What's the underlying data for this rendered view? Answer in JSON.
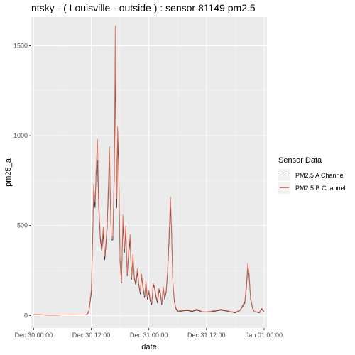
{
  "chart_data": {
    "type": "line",
    "title": "ntsky - ( Louisville - outside ) : sensor 81149 pm2.5",
    "xlabel": "date",
    "ylabel": "pm25_a",
    "x_ticks": [
      "Dec 30 00:00",
      "Dec 30 12:00",
      "Dec 31 00:00",
      "Dec 31 12:00",
      "Jan 01 00:00"
    ],
    "x_tick_hours": [
      0,
      12,
      24,
      36,
      48
    ],
    "xlim_hours": [
      -0.5,
      48.6
    ],
    "y_ticks": [
      0,
      500,
      1000,
      1500
    ],
    "ylim": [
      -70,
      1660
    ],
    "grid": true,
    "background": "#ebebeb",
    "legend_title": "Sensor Data",
    "legend_position": "right",
    "x_unit": "hours since Dec 30 00:00",
    "series": [
      {
        "name": "PM2.5 A Channel",
        "color": "#333333",
        "points": [
          [
            0,
            5
          ],
          [
            1,
            4
          ],
          [
            2,
            3
          ],
          [
            3,
            2
          ],
          [
            4,
            2
          ],
          [
            5,
            2
          ],
          [
            6,
            3
          ],
          [
            7,
            3
          ],
          [
            8,
            3
          ],
          [
            9,
            3
          ],
          [
            10,
            3
          ],
          [
            11,
            4
          ],
          [
            11.5,
            20
          ],
          [
            12,
            120
          ],
          [
            12.3,
            420
          ],
          [
            12.5,
            690
          ],
          [
            12.8,
            600
          ],
          [
            13,
            780
          ],
          [
            13.3,
            860
          ],
          [
            13.6,
            580
          ],
          [
            13.9,
            420
          ],
          [
            14.2,
            360
          ],
          [
            14.5,
            460
          ],
          [
            14.8,
            310
          ],
          [
            15,
            370
          ],
          [
            15.3,
            480
          ],
          [
            15.6,
            720
          ],
          [
            15.8,
            900
          ],
          [
            16,
            600
          ],
          [
            16.2,
            420
          ],
          [
            16.5,
            420
          ],
          [
            16.8,
            790
          ],
          [
            17,
            1420
          ],
          [
            17.1,
            1100
          ],
          [
            17.3,
            600
          ],
          [
            17.5,
            980
          ],
          [
            17.7,
            840
          ],
          [
            18,
            300
          ],
          [
            18.3,
            180
          ],
          [
            18.6,
            520
          ],
          [
            18.9,
            350
          ],
          [
            19.2,
            470
          ],
          [
            19.5,
            220
          ],
          [
            19.8,
            350
          ],
          [
            20.1,
            420
          ],
          [
            20.4,
            200
          ],
          [
            20.7,
            320
          ],
          [
            21,
            200
          ],
          [
            21.3,
            170
          ],
          [
            21.6,
            240
          ],
          [
            21.9,
            170
          ],
          [
            22.2,
            120
          ],
          [
            22.5,
            220
          ],
          [
            22.8,
            150
          ],
          [
            23.1,
            100
          ],
          [
            23.4,
            180
          ],
          [
            23.7,
            90
          ],
          [
            24,
            130
          ],
          [
            24.3,
            80
          ],
          [
            24.6,
            60
          ],
          [
            24.9,
            170
          ],
          [
            25.2,
            150
          ],
          [
            25.5,
            100
          ],
          [
            25.8,
            70
          ],
          [
            26.1,
            140
          ],
          [
            26.4,
            120
          ],
          [
            26.7,
            60
          ],
          [
            27,
            150
          ],
          [
            27.3,
            90
          ],
          [
            27.6,
            130
          ],
          [
            27.9,
            230
          ],
          [
            28.2,
            420
          ],
          [
            28.5,
            600
          ],
          [
            28.7,
            490
          ],
          [
            29,
            180
          ],
          [
            29.3,
            80
          ],
          [
            29.6,
            40
          ],
          [
            30,
            20
          ],
          [
            31,
            25
          ],
          [
            32,
            28
          ],
          [
            33,
            22
          ],
          [
            34,
            30
          ],
          [
            35,
            20
          ],
          [
            36,
            18
          ],
          [
            37,
            20
          ],
          [
            38,
            25
          ],
          [
            39,
            30
          ],
          [
            40,
            25
          ],
          [
            41,
            20
          ],
          [
            42,
            15
          ],
          [
            43,
            28
          ],
          [
            44,
            70
          ],
          [
            44.3,
            150
          ],
          [
            44.6,
            270
          ],
          [
            44.9,
            210
          ],
          [
            45.2,
            90
          ],
          [
            45.6,
            40
          ],
          [
            46,
            20
          ],
          [
            46.5,
            18
          ],
          [
            47,
            15
          ],
          [
            47.5,
            35
          ],
          [
            48,
            20
          ]
        ]
      },
      {
        "name": "PM2.5 B Channel",
        "color": "#e8705a",
        "points": [
          [
            0,
            6
          ],
          [
            1,
            5
          ],
          [
            2,
            3
          ],
          [
            3,
            2
          ],
          [
            4,
            2
          ],
          [
            5,
            3
          ],
          [
            6,
            3
          ],
          [
            7,
            3
          ],
          [
            8,
            4
          ],
          [
            9,
            3
          ],
          [
            10,
            3
          ],
          [
            11,
            4
          ],
          [
            11.5,
            25
          ],
          [
            12,
            140
          ],
          [
            12.3,
            450
          ],
          [
            12.5,
            730
          ],
          [
            12.8,
            630
          ],
          [
            13,
            810
          ],
          [
            13.3,
            980
          ],
          [
            13.6,
            610
          ],
          [
            13.9,
            440
          ],
          [
            14.2,
            380
          ],
          [
            14.5,
            490
          ],
          [
            14.8,
            330
          ],
          [
            15,
            390
          ],
          [
            15.3,
            510
          ],
          [
            15.6,
            770
          ],
          [
            15.8,
            940
          ],
          [
            16,
            620
          ],
          [
            16.2,
            440
          ],
          [
            16.5,
            440
          ],
          [
            16.8,
            840
          ],
          [
            17,
            1610
          ],
          [
            17.1,
            1200
          ],
          [
            17.3,
            650
          ],
          [
            17.5,
            1050
          ],
          [
            17.7,
            900
          ],
          [
            18,
            320
          ],
          [
            18.3,
            190
          ],
          [
            18.6,
            560
          ],
          [
            18.9,
            370
          ],
          [
            19.2,
            500
          ],
          [
            19.5,
            230
          ],
          [
            19.8,
            370
          ],
          [
            20.1,
            450
          ],
          [
            20.4,
            210
          ],
          [
            20.7,
            340
          ],
          [
            21,
            210
          ],
          [
            21.3,
            180
          ],
          [
            21.6,
            260
          ],
          [
            21.9,
            180
          ],
          [
            22.2,
            130
          ],
          [
            22.5,
            230
          ],
          [
            22.8,
            160
          ],
          [
            23.1,
            110
          ],
          [
            23.4,
            190
          ],
          [
            23.7,
            100
          ],
          [
            24,
            140
          ],
          [
            24.3,
            90
          ],
          [
            24.6,
            70
          ],
          [
            24.9,
            180
          ],
          [
            25.2,
            160
          ],
          [
            25.5,
            110
          ],
          [
            25.8,
            80
          ],
          [
            26.1,
            150
          ],
          [
            26.4,
            130
          ],
          [
            26.7,
            70
          ],
          [
            27,
            160
          ],
          [
            27.3,
            100
          ],
          [
            27.6,
            140
          ],
          [
            27.9,
            250
          ],
          [
            28.2,
            450
          ],
          [
            28.5,
            660
          ],
          [
            28.7,
            520
          ],
          [
            29,
            190
          ],
          [
            29.3,
            90
          ],
          [
            29.6,
            45
          ],
          [
            30,
            25
          ],
          [
            31,
            28
          ],
          [
            32,
            32
          ],
          [
            33,
            25
          ],
          [
            34,
            36
          ],
          [
            35,
            22
          ],
          [
            36,
            20
          ],
          [
            37,
            24
          ],
          [
            38,
            28
          ],
          [
            39,
            35
          ],
          [
            40,
            28
          ],
          [
            41,
            22
          ],
          [
            42,
            18
          ],
          [
            43,
            30
          ],
          [
            44,
            80
          ],
          [
            44.3,
            170
          ],
          [
            44.6,
            290
          ],
          [
            44.9,
            230
          ],
          [
            45.2,
            100
          ],
          [
            45.6,
            45
          ],
          [
            46,
            22
          ],
          [
            46.5,
            20
          ],
          [
            47,
            18
          ],
          [
            47.5,
            40
          ],
          [
            48,
            22
          ]
        ]
      }
    ]
  }
}
